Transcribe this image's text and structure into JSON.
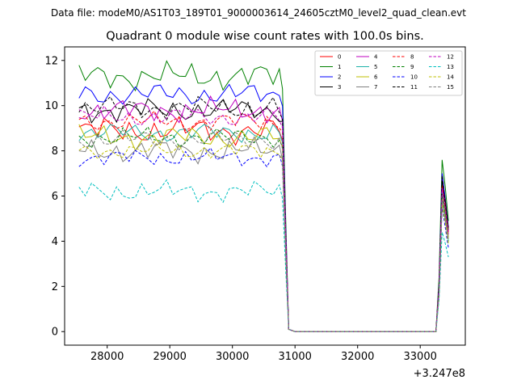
{
  "chart_data": {
    "type": "line",
    "suptitle": "Data file: modeM0/AS1T03_189T01_9000003614_24605cztM0_level2_quad_clean.evt",
    "title": "Quadrant 0 module wise count rates with 100.0s bins.",
    "xlabel": "",
    "ylabel": "",
    "x_offset_label": "+3.247e8",
    "xlim": [
      27320,
      33720
    ],
    "ylim": [
      -0.6,
      12.6
    ],
    "xticks": [
      28000,
      29000,
      30000,
      31000,
      32000,
      33000
    ],
    "yticks": [
      0,
      2,
      4,
      6,
      8,
      10,
      12
    ],
    "grid": false,
    "legend_position": "top-right",
    "x_active": [
      27550,
      27650,
      27750,
      27850,
      27950,
      28050,
      28150,
      28250,
      28350,
      28450,
      28550,
      28650,
      28750,
      28850,
      28950,
      29050,
      29150,
      29250,
      29350,
      29450,
      29550,
      29650,
      29750,
      29850,
      29950,
      30050,
      30150,
      30250,
      30350,
      30450,
      30550,
      30650,
      30750
    ],
    "gap_x": [
      30800,
      30850,
      30900,
      31000,
      31200,
      31600,
      32000,
      32400,
      32800,
      33150,
      33250
    ],
    "gap_y": [
      9.0,
      4.5,
      0.1,
      0.0,
      0.0,
      0.0,
      0.0,
      0.0,
      0.0,
      0.0,
      0.0
    ],
    "tail_x": [
      33300,
      33350,
      33400,
      33450
    ],
    "series": [
      {
        "name": "0",
        "color": "#ff0000",
        "dash": false,
        "mean": 8.9,
        "amp": 0.4,
        "phase": 0.0,
        "tail": [
          2.0,
          6.8,
          5.2,
          4.4
        ]
      },
      {
        "name": "1",
        "color": "#008000",
        "dash": false,
        "mean": 11.3,
        "amp": 0.4,
        "phase": 1.1,
        "tail": [
          2.4,
          7.6,
          6.4,
          4.9
        ]
      },
      {
        "name": "2",
        "color": "#0000ff",
        "dash": false,
        "mean": 10.5,
        "amp": 0.35,
        "phase": 2.3,
        "tail": [
          2.1,
          7.0,
          5.9,
          4.6
        ]
      },
      {
        "name": "3",
        "color": "#000000",
        "dash": false,
        "mean": 9.8,
        "amp": 0.35,
        "phase": 3.1,
        "tail": [
          2.0,
          6.6,
          5.8,
          4.5
        ]
      },
      {
        "name": "4",
        "color": "#bf00bf",
        "dash": false,
        "mean": 9.8,
        "amp": 0.35,
        "phase": 4.2,
        "tail": [
          2.0,
          6.4,
          5.5,
          4.3
        ]
      },
      {
        "name": "5",
        "color": "#20b2aa",
        "dash": false,
        "mean": 8.8,
        "amp": 0.3,
        "phase": 5.0,
        "tail": [
          1.8,
          6.2,
          5.0,
          4.0
        ]
      },
      {
        "name": "6",
        "color": "#bfbf00",
        "dash": false,
        "mean": 8.6,
        "amp": 0.35,
        "phase": 0.7,
        "tail": [
          1.8,
          6.0,
          5.3,
          4.2
        ]
      },
      {
        "name": "7",
        "color": "#808080",
        "dash": false,
        "mean": 8.0,
        "amp": 0.35,
        "phase": 1.9,
        "tail": [
          1.7,
          5.8,
          4.9,
          4.1
        ]
      },
      {
        "name": "8",
        "color": "#ff0000",
        "dash": true,
        "mean": 9.3,
        "amp": 0.3,
        "phase": 2.8,
        "tail": [
          1.9,
          6.5,
          5.7,
          4.4
        ]
      },
      {
        "name": "9",
        "color": "#008000",
        "dash": true,
        "mean": 8.6,
        "amp": 0.3,
        "phase": 3.6,
        "tail": [
          1.8,
          6.1,
          5.1,
          4.0
        ]
      },
      {
        "name": "10",
        "color": "#0000ff",
        "dash": true,
        "mean": 7.7,
        "amp": 0.25,
        "phase": 4.5,
        "tail": [
          1.6,
          5.5,
          4.6,
          3.7
        ]
      },
      {
        "name": "11",
        "color": "#000000",
        "dash": true,
        "mean": 9.9,
        "amp": 0.35,
        "phase": 5.4,
        "tail": [
          2.0,
          6.9,
          5.6,
          4.6
        ]
      },
      {
        "name": "12",
        "color": "#bf00bf",
        "dash": true,
        "mean": 9.5,
        "amp": 0.3,
        "phase": 0.3,
        "tail": [
          1.9,
          6.3,
          5.4,
          4.3
        ]
      },
      {
        "name": "13",
        "color": "#00bfbf",
        "dash": true,
        "mean": 6.2,
        "amp": 0.3,
        "phase": 1.5,
        "tail": [
          1.4,
          4.4,
          3.9,
          3.3
        ]
      },
      {
        "name": "14",
        "color": "#bfbf00",
        "dash": true,
        "mean": 8.0,
        "amp": 0.25,
        "phase": 2.6,
        "tail": [
          1.6,
          5.6,
          4.8,
          3.9
        ]
      },
      {
        "name": "15",
        "color": "#808080",
        "dash": true,
        "mean": 8.5,
        "amp": 0.3,
        "phase": 3.9,
        "tail": [
          1.7,
          5.9,
          5.0,
          4.1
        ]
      }
    ]
  }
}
